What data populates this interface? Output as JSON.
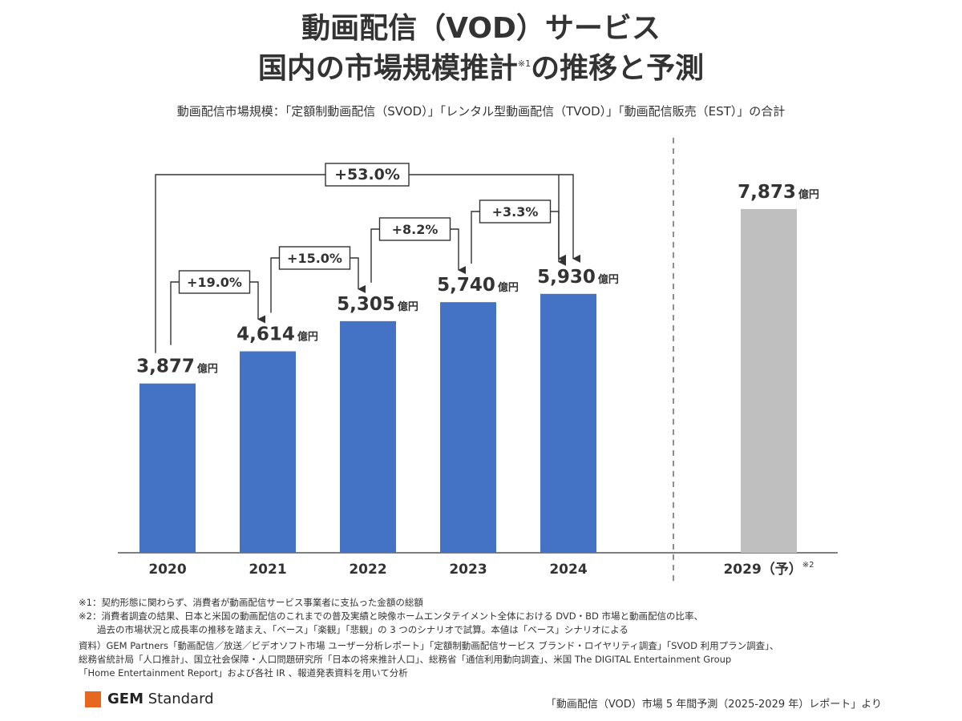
{
  "title_line1": "動画配信（VOD）サービス",
  "title_line2_a": "国内の市場規模推計",
  "title_line2_sup": "※1",
  "title_line2_b": "の推移と予測",
  "subtitle": "動画配信市場規模：「定額制動画配信（SVOD）」「レンタル型動画配信（TVOD）」「動画配信販売（EST）」の合計",
  "chart_data": {
    "type": "bar",
    "unit": "億円",
    "categories": [
      "2020",
      "2021",
      "2022",
      "2023",
      "2024",
      "2029（予）"
    ],
    "forecast_note": "※2",
    "values": [
      3877,
      4614,
      5305,
      5740,
      5930,
      7873
    ],
    "value_labels": [
      "3,877",
      "4,614",
      "5,305",
      "5,740",
      "5,930",
      "7,873"
    ],
    "colors": [
      "#4472c4",
      "#4472c4",
      "#4472c4",
      "#4472c4",
      "#4472c4",
      "#bfbfbf"
    ],
    "growth_annotations": [
      {
        "from": "2020",
        "to": "2021",
        "label": "+19.0%"
      },
      {
        "from": "2021",
        "to": "2022",
        "label": "+15.0%"
      },
      {
        "from": "2022",
        "to": "2023",
        "label": "+8.2%"
      },
      {
        "from": "2023",
        "to": "2024",
        "label": "+3.3%"
      },
      {
        "from": "2020",
        "to": "2024",
        "label": "+53.0%"
      }
    ],
    "ylim": [
      0,
      9000
    ]
  },
  "notes": [
    "※1：契約形態に関わらず、消費者が動画配信サービス事業者に支払った金額の総額",
    "※2：消費者調査の結果、日本と米国の動画配信のこれまでの普及実績と映像ホームエンタテイメント全体における DVD・BD 市場と動画配信の比率、",
    "　　過去の市場状況と成長率の推移を踏まえ、「ベース」「楽観」「悲観」の 3 つのシナリオで試算。本値は「ベース」シナリオによる"
  ],
  "sources": [
    "資料）GEM Partners「動画配信／放送／ビデオソフト市場 ユーザー分析レポート」「定額制動画配信サービス ブランド・ロイヤリティ調査」「SVOD 利用プラン調査」、",
    "総務省統計局「人口推計」、国立社会保障・人口問題研究所「日本の将来推計人口」、総務省「通信利用動向調査」、米国 The DIGITAL Entertainment Group",
    "「Home Entertainment Report」および各社 IR 、報道発表資料を用いて分析"
  ],
  "logo_bold": "GEM",
  "logo_rest": " Standard",
  "footer_source": "「動画配信（VOD）市場 5 年間予測（2025-2029 年）レポート」より",
  "accent_color": "#e8671f"
}
